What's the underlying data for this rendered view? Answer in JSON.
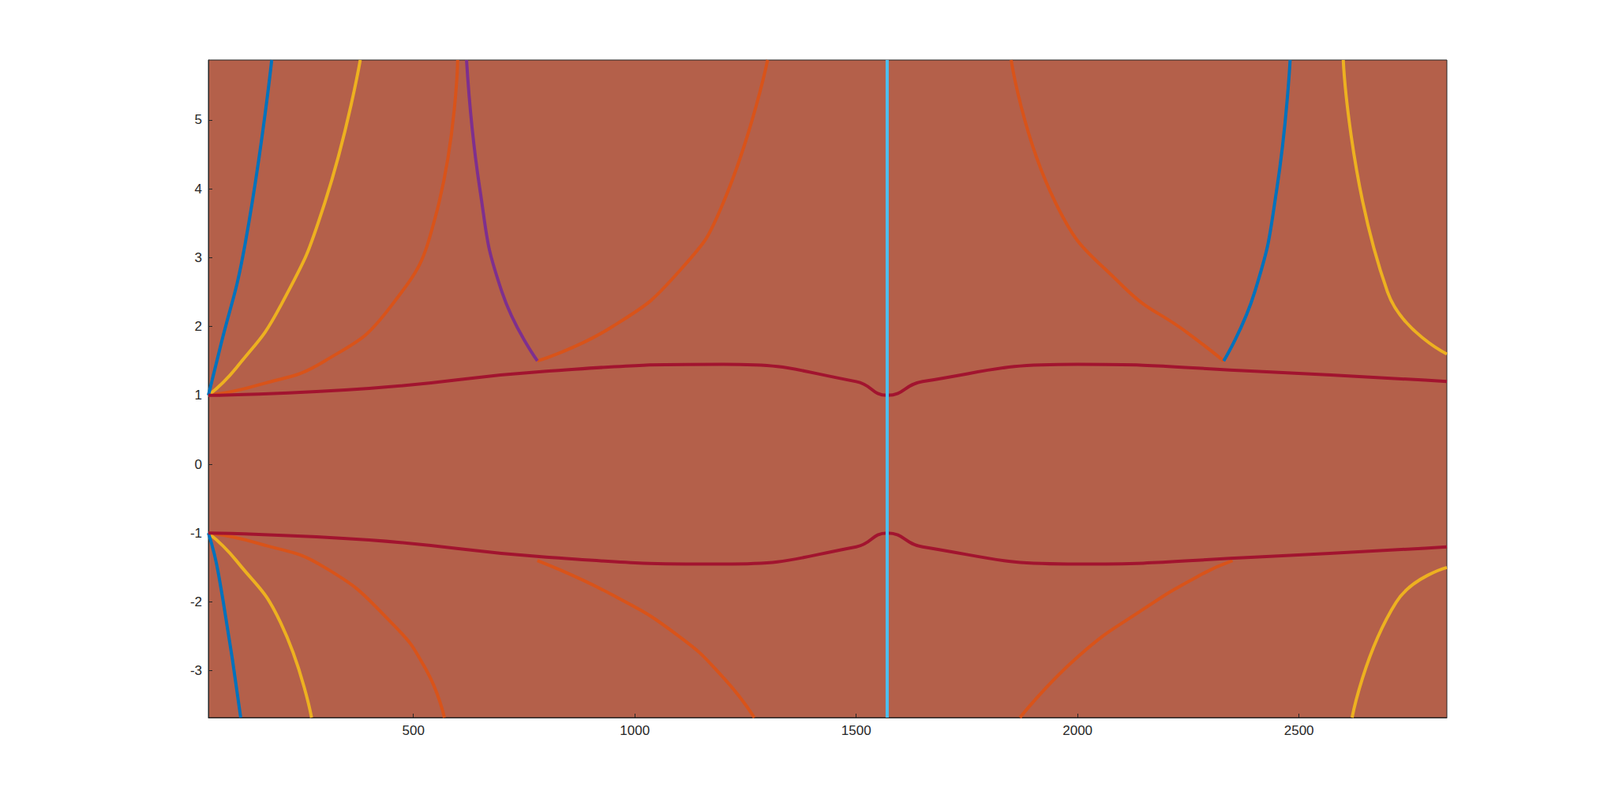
{
  "chart_data": {
    "type": "line",
    "xlim": [
      37,
      2834
    ],
    "xticks": [
      500,
      1000,
      1500,
      2000,
      2500
    ],
    "ylim": [
      -3.68,
      5.87
    ],
    "yticks": [
      -3,
      -2,
      -1,
      0,
      1,
      2,
      3,
      4,
      5
    ],
    "grid": false,
    "series": [
      {
        "color": "#D95319",
        "x": [
          37,
          150,
          300,
          450,
          550,
          600
        ],
        "values": [
          1,
          1.15,
          1.5,
          2.3,
          3.6,
          5.87
        ]
      },
      {
        "color": "#EDB120",
        "x": [
          37,
          100,
          200,
          300,
          380
        ],
        "values": [
          1,
          1.4,
          2.3,
          3.8,
          5.87
        ]
      },
      {
        "color": "#0072BD",
        "x": [
          37,
          60,
          120,
          180
        ],
        "values": [
          1,
          1.6,
          3.2,
          5.87
        ]
      },
      {
        "color": "#D95319",
        "x": [
          37,
          150,
          300,
          450,
          530,
          570
        ],
        "values": [
          -1,
          -1.15,
          -1.5,
          -2.3,
          -3.0,
          -3.68
        ]
      },
      {
        "color": "#EDB120",
        "x": [
          37,
          100,
          200,
          270
        ],
        "values": [
          -1,
          -1.4,
          -2.3,
          -3.68
        ]
      },
      {
        "color": "#0072BD",
        "x": [
          37,
          60,
          110
        ],
        "values": [
          -1,
          -1.6,
          -3.68
        ]
      },
      {
        "color": "#D95319",
        "x": [
          780,
          950,
          1100,
          1200,
          1300
        ],
        "values": [
          1.5,
          2.0,
          2.8,
          3.8,
          5.87
        ]
      },
      {
        "color": "#D95319",
        "x": [
          1850,
          1950,
          2100,
          2250,
          2330
        ],
        "values": [
          5.87,
          3.8,
          2.6,
          1.9,
          1.5
        ]
      },
      {
        "color": "#D95319",
        "x": [
          780,
          950,
          1100,
          1200,
          1270
        ],
        "values": [
          -1.4,
          -1.9,
          -2.5,
          -3.1,
          -3.68
        ]
      },
      {
        "color": "#D95319",
        "x": [
          1870,
          2000,
          2150,
          2280,
          2350
        ],
        "values": [
          -3.68,
          -2.8,
          -2.1,
          -1.6,
          -1.4
        ]
      },
      {
        "color": "#A2142F",
        "x": [
          37,
          400,
          800,
          1200,
          1500,
          1570,
          1650,
          2000,
          2400,
          2834
        ],
        "values": [
          1,
          1.1,
          1.35,
          1.45,
          1.2,
          1.0,
          1.2,
          1.45,
          1.35,
          1.2
        ]
      },
      {
        "color": "#A2142F",
        "x": [
          37,
          400,
          800,
          1200,
          1500,
          1570,
          1650,
          2000,
          2400,
          2834
        ],
        "values": [
          -1,
          -1.1,
          -1.35,
          -1.45,
          -1.2,
          -1.0,
          -1.2,
          -1.45,
          -1.35,
          -1.2
        ]
      },
      {
        "color": "#EDB120",
        "x": [
          2600,
          2700,
          2834
        ],
        "values": [
          5.87,
          2.5,
          1.6
        ]
      },
      {
        "color": "#EDB120",
        "x": [
          2620,
          2720,
          2834
        ],
        "values": [
          -3.68,
          -2.0,
          -1.5
        ]
      },
      {
        "color": "#7E2F8E",
        "x": [
          780,
          700,
          650,
          620
        ],
        "values": [
          1.5,
          2.5,
          4,
          5.87
        ]
      },
      {
        "color": "#0072BD",
        "x": [
          2330,
          2400,
          2450,
          2480
        ],
        "values": [
          1.5,
          2.5,
          4,
          5.87
        ]
      },
      {
        "color": "#4DBEEE",
        "x": [
          1570,
          1570
        ],
        "values": [
          -3.68,
          5.87
        ]
      }
    ]
  }
}
